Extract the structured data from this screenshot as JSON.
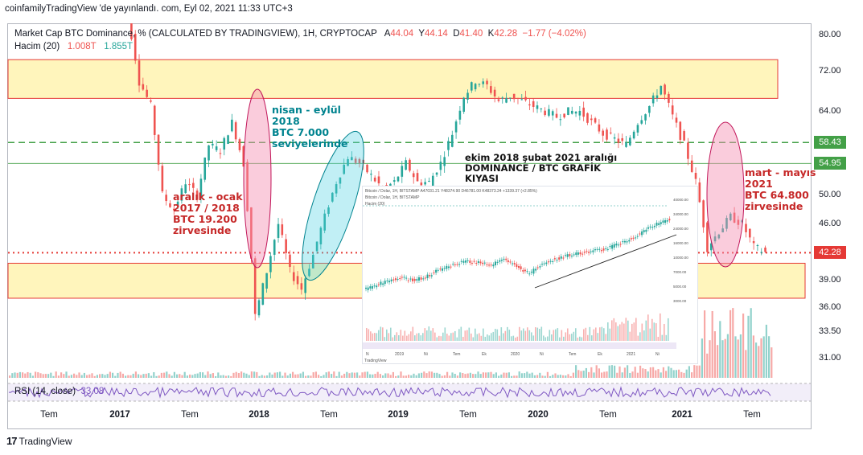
{
  "header": {
    "publish_line": "coinfamilyTradingView 'de yayınlandı. com, Eyl 02, 2021 11:33 UTC+3"
  },
  "legend": {
    "title": "Market Cap BTC Dominance, % (CALCULATED BY TRADINGVIEW), 1H, CRYPTOCAP",
    "a_label": "A",
    "a_value": "44.04",
    "y_label": "Y",
    "y_value": "44.14",
    "d_label": "D",
    "d_value": "41.40",
    "k_label": "K",
    "k_value": "42.28",
    "change": "−1.77 (−4.02%)",
    "volume_label": "Hacim (20)",
    "volume_v1": "1.008T",
    "volume_v2": "1.855T",
    "rsi_label": "RSI (14, close)",
    "rsi_value": "33.08"
  },
  "annotations": {
    "a1": "aralık - ocak",
    "a2": "2017 / 2018",
    "a3": "BTC 19.200",
    "a4": "zirvesinde",
    "b1": "nisan - eylül",
    "b2": "2018",
    "b3": "BTC 7.000",
    "b4": "seviyelerinde",
    "c1": "ekim 2018 şubat 2021 aralığı",
    "c2": "DOMINANCE / BTC GRAFİK",
    "c3": "KIYASI",
    "d1": "mart - mayıs",
    "d2": "2021",
    "d3": "BTC 64.800",
    "d4": "zirvesinde"
  },
  "inset": {
    "hdr1": "Bitcoin / Dolar, 1H, BITSTAMP  A47031.21 Y48374.90 D46781.00 K48373.24 +1339.37 (+2.85%)",
    "hdr2": "Bitcoin / Dolar, 1H, BITSTAMP",
    "hdr3": "Hacim (20)",
    "brand": "TradingView",
    "x_ticks": [
      "N",
      "2019",
      "Ni",
      "Tem",
      "Ek",
      "2020",
      "Ni",
      "Tem",
      "Ek",
      "2021",
      "Ni"
    ],
    "y_ticks": [
      "40000.00",
      "34000.00",
      "24000.00",
      "16000.00",
      "10000.00",
      "7000.00",
      "5000.00",
      "3000.00"
    ]
  },
  "brand": {
    "logo": "17",
    "name": "TradingView"
  },
  "colors": {
    "up": "#26a69a",
    "down": "#ef5350",
    "zone_fill": "#fff3b0",
    "zone_border": "#e53935",
    "resistance_line": "#43a047",
    "current_price_line": "#e53935",
    "rsi_line": "#7e57c2",
    "pink_ellipse": "#f48fb1",
    "teal_ellipse": "#4dd0e1"
  },
  "chart_data": {
    "type": "candlestick",
    "title": "Market Cap BTC Dominance, % (CALCULATED BY TRADINGVIEW), 1H, CRYPTOCAP",
    "y_axis": {
      "ticks": [
        80,
        72,
        64,
        58.43,
        54.95,
        50,
        46,
        42.28,
        39,
        36,
        33.5,
        31
      ],
      "tick_labels": [
        "80.00",
        "72.00",
        "64.00",
        "58.43",
        "54.95",
        "50.00",
        "46.00",
        "42.28",
        "39.00",
        "36.00",
        "33.50",
        "31.00"
      ],
      "scale": "log",
      "range": [
        30.5,
        82
      ],
      "badges": [
        {
          "label": "58.43",
          "value": 58.43,
          "kind": "line"
        },
        {
          "label": "54.95",
          "value": 54.95,
          "kind": "line"
        },
        {
          "label": "42.28",
          "value": 42.28,
          "kind": "price"
        }
      ]
    },
    "x_axis": {
      "labels": [
        {
          "text": "Tem",
          "bold": false
        },
        {
          "text": "2017",
          "bold": true
        },
        {
          "text": "Tem",
          "bold": false
        },
        {
          "text": "2018",
          "bold": true
        },
        {
          "text": "Tem",
          "bold": false
        },
        {
          "text": "2019",
          "bold": true
        },
        {
          "text": "Tem",
          "bold": false
        },
        {
          "text": "2020",
          "bold": true
        },
        {
          "text": "Tem",
          "bold": false
        },
        {
          "text": "2021",
          "bold": true
        },
        {
          "text": "Tem",
          "bold": false
        }
      ],
      "range": [
        "2016-05",
        "2021-09"
      ]
    },
    "zones": [
      {
        "name": "upper",
        "low": 66.5,
        "high": 74.5
      },
      {
        "name": "lower",
        "low": 37,
        "high": 41
      }
    ],
    "lines": [
      {
        "value": 58.43,
        "style": "dashed"
      },
      {
        "value": 54.95,
        "style": "solid"
      },
      {
        "value": 42.28,
        "style": "dotted"
      }
    ],
    "series": [
      {
        "name": "Market Cap BTC Dominance",
        "x": [
          "2017-01",
          "2017-02",
          "2017-03",
          "2017-04",
          "2017-05",
          "2017-06",
          "2017-07",
          "2017-08",
          "2017-09",
          "2017-10",
          "2017-11",
          "2017-12",
          "2018-01",
          "2018-02",
          "2018-03",
          "2018-04",
          "2018-05",
          "2018-06",
          "2018-07",
          "2018-08",
          "2018-09",
          "2018-10",
          "2018-11",
          "2018-12",
          "2019-01",
          "2019-02",
          "2019-03",
          "2019-04",
          "2019-05",
          "2019-06",
          "2019-07",
          "2019-08",
          "2019-09",
          "2019-10",
          "2019-11",
          "2019-12",
          "2020-01",
          "2020-02",
          "2020-03",
          "2020-04",
          "2020-05",
          "2020-06",
          "2020-07",
          "2020-08",
          "2020-09",
          "2020-10",
          "2020-11",
          "2020-12",
          "2021-01",
          "2021-02",
          "2021-03",
          "2021-04",
          "2021-05",
          "2021-06",
          "2021-07",
          "2021-08",
          "2021-09"
        ],
        "close": [
          86,
          85,
          70,
          65,
          50,
          48,
          52,
          50,
          58,
          57,
          62,
          55,
          35,
          40,
          46,
          40,
          38,
          42,
          47,
          52,
          56,
          55,
          53,
          51,
          52,
          55,
          52,
          52,
          55,
          60,
          67,
          70,
          69,
          66,
          67,
          66,
          65,
          64,
          63,
          64,
          64,
          62,
          60,
          59,
          58,
          62,
          65,
          69,
          63,
          58,
          52,
          43,
          45,
          47,
          46,
          43,
          42.3
        ]
      }
    ],
    "volume": {
      "name": "Hacim (20)",
      "values": [
        "1.008T",
        "1.855T"
      ]
    },
    "rsi": {
      "name": "RSI (14, close)",
      "value": 33.08
    }
  }
}
